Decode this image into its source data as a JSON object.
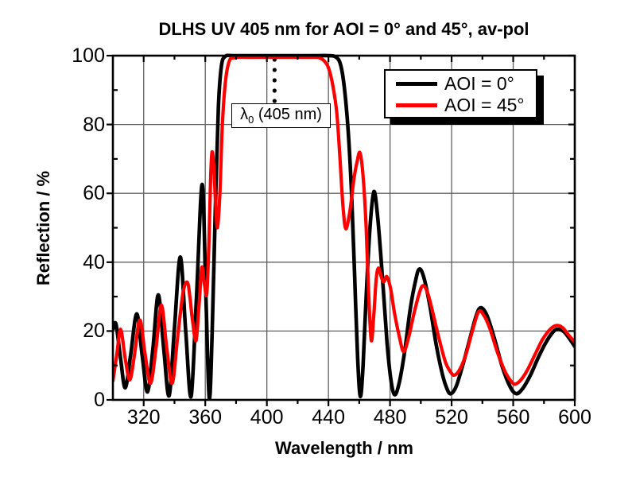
{
  "title": "DLHS UV 405 nm for AOI = 0° and 45°, av-pol",
  "annotation": {
    "symbol": "λ",
    "subscript": "0",
    "rest": " (405 nm)",
    "line_x": 405
  },
  "colors": {
    "background": "#ffffff",
    "frame": "#000000",
    "grid": "#606060",
    "series_aoi0": "#000000",
    "series_aoi45": "#ff0000"
  },
  "legend": {
    "position": "top-right"
  },
  "chart_data": {
    "type": "line",
    "title": "DLHS UV 405 nm for AOI = 0° and 45°, av-pol",
    "xlabel": "Wavelength / nm",
    "ylabel": "Reflection / %",
    "xlim": [
      300,
      600
    ],
    "ylim": [
      0,
      100
    ],
    "x_major_ticks": [
      320,
      360,
      400,
      440,
      480,
      520,
      560,
      600
    ],
    "x_minor_ticks": [
      340,
      380,
      420,
      460,
      500,
      540,
      580
    ],
    "y_major_ticks": [
      0,
      20,
      40,
      60,
      80,
      100
    ],
    "y_minor_ticks": [
      10,
      30,
      50,
      70,
      90
    ],
    "grid": true,
    "legend_position": "top-right",
    "annotation": {
      "text": "λ0 (405 nm)",
      "x": 405
    },
    "series": [
      {
        "name": "AOI = 0°",
        "color": "#000000",
        "width": 4.6,
        "points": [
          [
            300,
            20.5
          ],
          [
            302,
            22
          ],
          [
            305,
            12
          ],
          [
            308,
            3.5
          ],
          [
            311.5,
            13
          ],
          [
            315.5,
            25
          ],
          [
            319,
            13
          ],
          [
            322.5,
            2.3
          ],
          [
            326,
            15
          ],
          [
            329.5,
            30.5
          ],
          [
            333,
            15
          ],
          [
            336.5,
            1.2
          ],
          [
            340,
            21
          ],
          [
            343.8,
            41.5
          ],
          [
            347.3,
            20
          ],
          [
            350.8,
            1
          ],
          [
            354.3,
            30
          ],
          [
            358,
            62.6
          ],
          [
            360.4,
            30
          ],
          [
            362.6,
            0.5
          ],
          [
            364.5,
            20
          ],
          [
            366.5,
            55
          ],
          [
            368.5,
            85
          ],
          [
            370.5,
            97
          ],
          [
            373,
            99.8
          ],
          [
            378,
            100
          ],
          [
            395,
            100
          ],
          [
            415,
            100
          ],
          [
            432,
            100
          ],
          [
            440,
            100
          ],
          [
            444,
            99.8
          ],
          [
            447,
            98.5
          ],
          [
            449,
            95
          ],
          [
            451,
            88
          ],
          [
            453,
            77
          ],
          [
            455,
            60
          ],
          [
            457,
            36
          ],
          [
            459,
            12
          ],
          [
            460.7,
            1
          ],
          [
            462.5,
            10
          ],
          [
            464.5,
            30
          ],
          [
            467,
            50
          ],
          [
            469.5,
            60.5
          ],
          [
            472,
            53
          ],
          [
            475,
            36
          ],
          [
            478,
            17
          ],
          [
            480.5,
            6
          ],
          [
            483,
            1.5
          ],
          [
            486,
            5
          ],
          [
            489.5,
            14
          ],
          [
            493,
            26
          ],
          [
            496.5,
            34.5
          ],
          [
            499,
            38
          ],
          [
            502,
            35.5
          ],
          [
            506,
            27
          ],
          [
            510,
            16
          ],
          [
            514,
            7.5
          ],
          [
            517,
            3.2
          ],
          [
            519.5,
            1.8
          ],
          [
            523,
            4
          ],
          [
            527.5,
            10.5
          ],
          [
            532,
            18
          ],
          [
            536,
            24.5
          ],
          [
            539,
            26.8
          ],
          [
            543,
            24.5
          ],
          [
            548,
            17.5
          ],
          [
            553,
            9.5
          ],
          [
            558,
            3.8
          ],
          [
            562,
            1.8
          ],
          [
            566,
            3.2
          ],
          [
            571,
            7
          ],
          [
            576,
            12
          ],
          [
            581,
            16.5
          ],
          [
            586,
            19.8
          ],
          [
            589,
            20.5
          ],
          [
            593,
            19.8
          ],
          [
            597,
            17.5
          ],
          [
            600,
            15.5
          ]
        ]
      },
      {
        "name": "AOI = 45°",
        "color": "#ff0000",
        "width": 4.2,
        "points": [
          [
            300,
            5.5
          ],
          [
            302.5,
            13
          ],
          [
            305,
            20.5
          ],
          [
            308,
            12
          ],
          [
            311,
            5.8
          ],
          [
            314,
            13
          ],
          [
            317.5,
            23.2
          ],
          [
            321,
            13
          ],
          [
            324.5,
            4.8
          ],
          [
            328,
            15
          ],
          [
            331.5,
            27.5
          ],
          [
            335,
            15
          ],
          [
            338.5,
            4.8
          ],
          [
            342,
            18
          ],
          [
            345.5,
            31
          ],
          [
            348.3,
            34.2
          ],
          [
            350,
            30
          ],
          [
            351.5,
            24
          ],
          [
            354,
            17.2
          ],
          [
            356,
            28
          ],
          [
            357.8,
            38.5
          ],
          [
            359.5,
            33.5
          ],
          [
            361,
            30.8
          ],
          [
            362.3,
            45
          ],
          [
            363.5,
            65
          ],
          [
            364.4,
            72
          ],
          [
            365.5,
            68
          ],
          [
            366.6,
            58
          ],
          [
            367.9,
            50
          ],
          [
            369.5,
            60
          ],
          [
            371,
            79
          ],
          [
            373,
            92
          ],
          [
            375.5,
            98.3
          ],
          [
            379,
            99.4
          ],
          [
            390,
            99.5
          ],
          [
            405,
            99.5
          ],
          [
            420,
            99.5
          ],
          [
            430,
            99.5
          ],
          [
            434,
            99.4
          ],
          [
            437,
            98.6
          ],
          [
            440,
            96.5
          ],
          [
            443,
            91
          ],
          [
            445.5,
            83
          ],
          [
            447.5,
            70
          ],
          [
            449.5,
            56
          ],
          [
            451.3,
            49.7
          ],
          [
            454,
            55
          ],
          [
            456.5,
            64
          ],
          [
            458.5,
            69
          ],
          [
            460.5,
            71.8
          ],
          [
            462.5,
            65
          ],
          [
            464.5,
            50
          ],
          [
            466,
            32
          ],
          [
            467.8,
            17.3
          ],
          [
            469.5,
            25
          ],
          [
            471,
            35
          ],
          [
            472.5,
            38.3
          ],
          [
            474.5,
            35.5
          ],
          [
            476,
            34.3
          ],
          [
            478,
            35.8
          ],
          [
            480.5,
            32
          ],
          [
            483,
            25
          ],
          [
            486,
            18.5
          ],
          [
            488.8,
            14
          ],
          [
            492,
            18
          ],
          [
            495.5,
            25
          ],
          [
            499,
            31
          ],
          [
            501.5,
            33.2
          ],
          [
            504.5,
            31
          ],
          [
            508,
            25
          ],
          [
            512,
            17.5
          ],
          [
            516,
            11
          ],
          [
            519.5,
            8
          ],
          [
            522,
            7.2
          ],
          [
            525.5,
            9
          ],
          [
            529.5,
            13.5
          ],
          [
            533.5,
            20
          ],
          [
            537.5,
            25.6
          ],
          [
            541,
            24.5
          ],
          [
            545,
            20.5
          ],
          [
            550,
            13.5
          ],
          [
            555,
            8
          ],
          [
            559,
            5.2
          ],
          [
            561.5,
            4.6
          ],
          [
            565,
            5.8
          ],
          [
            569,
            8.5
          ],
          [
            574,
            13
          ],
          [
            579,
            17.5
          ],
          [
            584,
            20.5
          ],
          [
            588,
            21.6
          ],
          [
            592,
            21
          ],
          [
            596,
            18.8
          ],
          [
            600,
            16.8
          ]
        ]
      }
    ]
  }
}
